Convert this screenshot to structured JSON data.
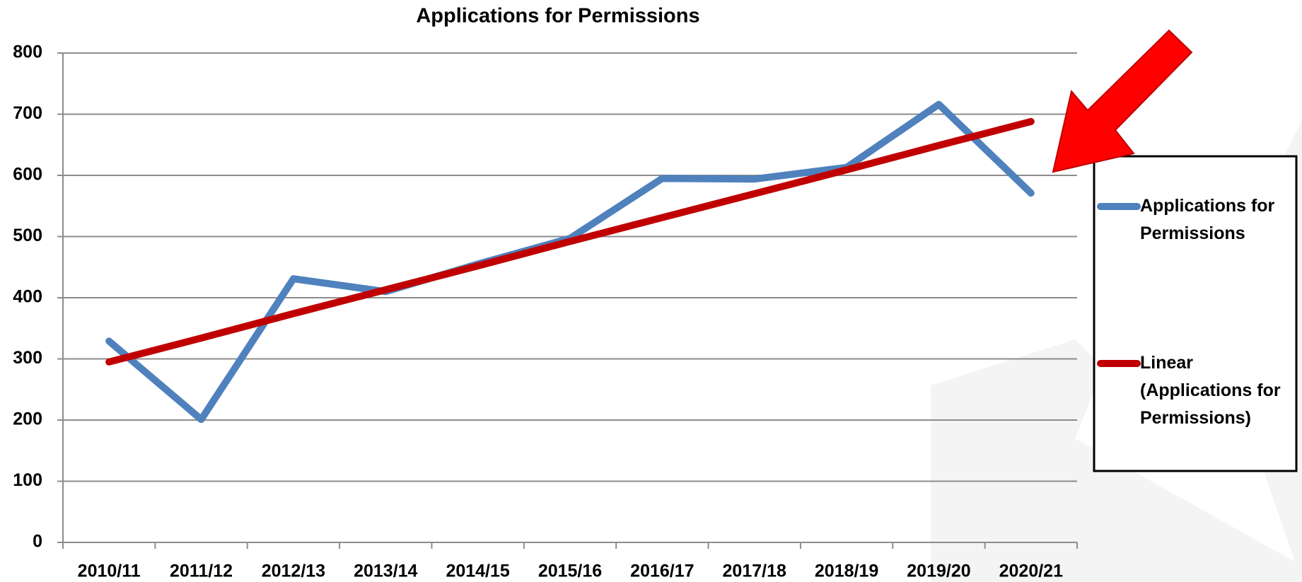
{
  "chart_data": {
    "type": "line",
    "title": "Applications for Permissions",
    "categories": [
      "2010/11",
      "2011/12",
      "2012/13",
      "2013/14",
      "2014/15",
      "2015/16",
      "2016/17",
      "2017/18",
      "2018/19",
      "2019/20",
      "2020/21"
    ],
    "series": [
      {
        "name": "Applications for Permissions",
        "color": "#4f81bd",
        "values": [
          329,
          201,
          431,
          410,
          455,
          497,
          595,
          594,
          613,
          716,
          571
        ]
      },
      {
        "name": "Linear (Applications for Permissions)",
        "color": "#c00000",
        "values": [
          295,
          334,
          374,
          413,
          452,
          492,
          531,
          570,
          609,
          649,
          688
        ]
      }
    ],
    "ylim": [
      0,
      800
    ],
    "yticks": [
      0,
      100,
      200,
      300,
      400,
      500,
      600,
      700,
      800
    ],
    "grid": true,
    "legend": "right"
  }
}
